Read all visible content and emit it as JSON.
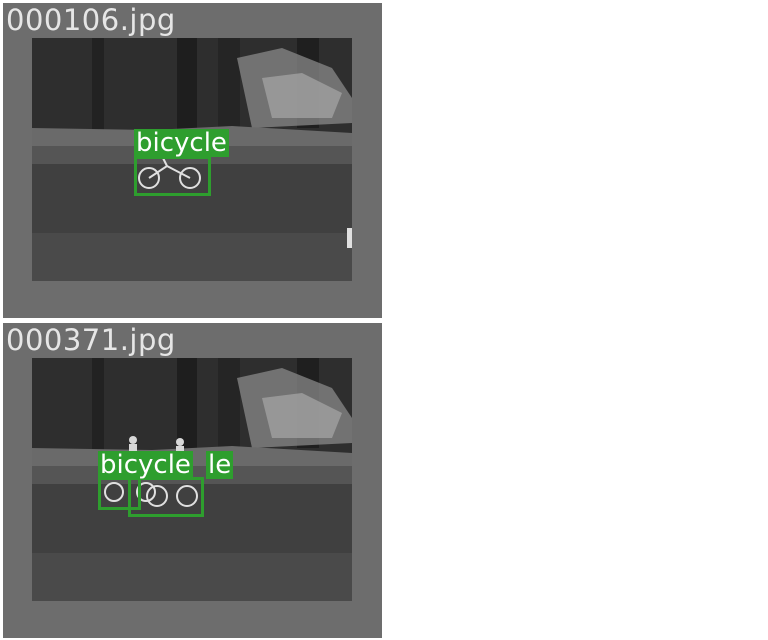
{
  "tiles": [
    {
      "filename": "000106.jpg",
      "detections": [
        {
          "label": "bicycle"
        }
      ]
    },
    {
      "filename": "000371.jpg",
      "detections": [
        {
          "label": "bicycle"
        },
        {
          "label": "le"
        },
        {
          "label": ""
        }
      ]
    }
  ],
  "colors": {
    "box": "#2e9e2e",
    "tile_bg": "#6d6d6d",
    "label_text": "#ffffff"
  }
}
